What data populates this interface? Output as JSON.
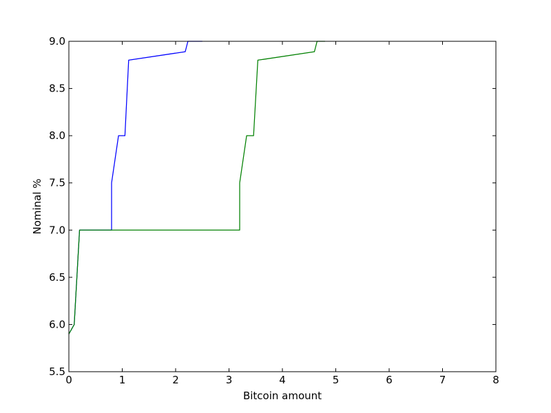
{
  "chart_data": {
    "type": "line",
    "title": "",
    "xlabel": "Bitcoin amount",
    "ylabel": "Nominal  %",
    "xlim": [
      0,
      8
    ],
    "ylim": [
      5.5,
      9.0
    ],
    "xticks": [
      0,
      1,
      2,
      3,
      4,
      5,
      6,
      7,
      8
    ],
    "yticks": [
      5.5,
      6.0,
      6.5,
      7.0,
      7.5,
      8.0,
      8.5,
      9.0
    ],
    "xtick_labels": [
      "0",
      "1",
      "2",
      "3",
      "4",
      "5",
      "6",
      "7",
      "8"
    ],
    "ytick_labels": [
      "5.5",
      "6.0",
      "6.5",
      "7.0",
      "7.5",
      "8.0",
      "8.5",
      "9.0"
    ],
    "grid": false,
    "series": [
      {
        "name": "series-blue",
        "color": "#0000ff",
        "x": [
          0.0,
          0.1,
          0.2,
          0.8,
          0.8,
          0.93,
          1.05,
          1.12,
          2.18,
          2.23,
          2.5
        ],
        "y": [
          5.9,
          6.0,
          7.0,
          7.0,
          7.5,
          8.0,
          8.0,
          8.8,
          8.89,
          9.0,
          9.0
        ]
      },
      {
        "name": "series-green",
        "color": "#008000",
        "x": [
          0.0,
          0.1,
          0.2,
          3.2,
          3.2,
          3.33,
          3.46,
          3.54,
          4.6,
          4.65,
          4.8
        ],
        "y": [
          5.9,
          6.0,
          7.0,
          7.0,
          7.5,
          8.0,
          8.0,
          8.8,
          8.89,
          9.0,
          9.0
        ]
      }
    ]
  }
}
